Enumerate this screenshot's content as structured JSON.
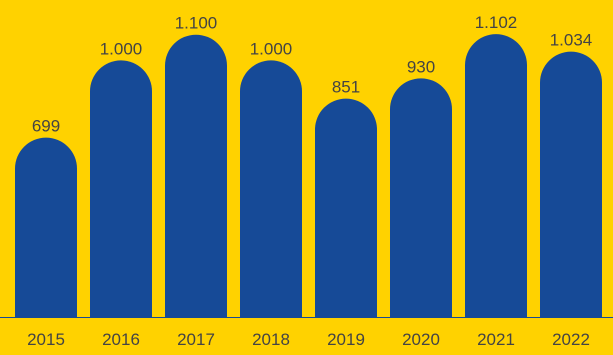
{
  "colors": {
    "background": "#FFD200",
    "bar": "#164A97",
    "text": "#444444",
    "axis": "#164A97"
  },
  "chart_data": {
    "type": "bar",
    "title": "",
    "xlabel": "",
    "ylabel": "",
    "categories": [
      "2015",
      "2016",
      "2017",
      "2018",
      "2019",
      "2020",
      "2021",
      "2022"
    ],
    "values": [
      699,
      1000,
      1100,
      1000,
      851,
      930,
      1102,
      1034
    ],
    "value_labels": [
      "699",
      "1.000",
      "1.100",
      "1.000",
      "851",
      "930",
      "1.102",
      "1.034"
    ],
    "ylim": [
      0,
      1130
    ],
    "grid": false,
    "legend": "none"
  }
}
